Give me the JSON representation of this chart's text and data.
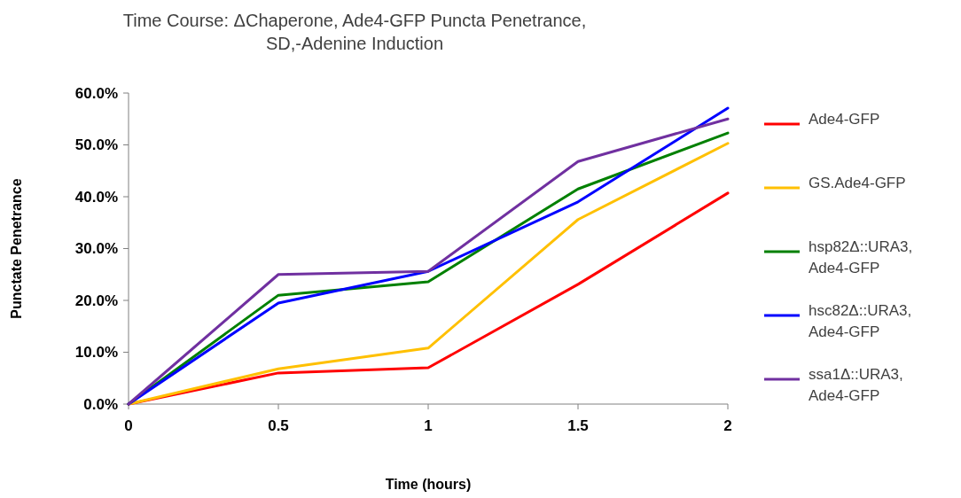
{
  "chart_data": {
    "type": "line",
    "title": "Time Course:  ΔChaperone, Ade4-GFP Puncta Penetrance, SD,-Adenine Induction",
    "xlabel": "Time (hours)",
    "ylabel": "Punctate Penetrance",
    "x": [
      0,
      0.5,
      1,
      1.5,
      2
    ],
    "xlim": [
      0,
      2
    ],
    "xticks": [
      0,
      0.5,
      1,
      1.5,
      2
    ],
    "ylim": [
      0,
      60
    ],
    "yticks": [
      {
        "value": 0,
        "label": "0.0%"
      },
      {
        "value": 10,
        "label": "10.0%"
      },
      {
        "value": 20,
        "label": "20.0%"
      },
      {
        "value": 30,
        "label": "30.0%"
      },
      {
        "value": 40,
        "label": "40.0%"
      },
      {
        "value": 50,
        "label": "50.0%"
      },
      {
        "value": 60,
        "label": "60.0%"
      }
    ],
    "grid": false,
    "legend": "right",
    "marker": "none",
    "line_style": "solid",
    "series": [
      {
        "name": "Ade4-GFP",
        "color": "#ff0000",
        "values": [
          0,
          6.0,
          7.0,
          23.1,
          40.7
        ]
      },
      {
        "name": "GS.Ade4-GFP",
        "color": "#ffc000",
        "values": [
          0,
          6.8,
          10.8,
          35.6,
          50.3
        ]
      },
      {
        "name": "hsp82Δ::URA3, Ade4-GFP",
        "color": "#008000",
        "values": [
          0,
          21.0,
          23.6,
          41.5,
          52.3
        ]
      },
      {
        "name": "hsc82Δ::URA3, Ade4-GFP",
        "color": "#0000ff",
        "values": [
          0,
          19.5,
          25.6,
          39.0,
          57.1
        ]
      },
      {
        "name": "ssa1Δ::URA3, Ade4-GFP",
        "color": "#7030a0",
        "values": [
          0,
          25.0,
          25.6,
          46.8,
          55.0
        ]
      }
    ]
  }
}
